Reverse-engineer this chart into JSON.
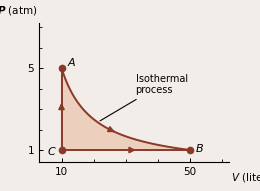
{
  "point_A": [
    10,
    5
  ],
  "point_B": [
    50,
    1
  ],
  "point_C": [
    10,
    1
  ],
  "PV_const": 50,
  "xlim": [
    3,
    62
  ],
  "ylim": [
    0.4,
    7.2
  ],
  "xticks": [
    10,
    50
  ],
  "yticks": [
    1,
    5
  ],
  "xlabel": "V (liters)",
  "ylabel": "P (atm)",
  "annotation_text": "Isothermal\nprocess",
  "curve_color": "#8B3A2A",
  "fill_color": "#E8B89A",
  "fill_alpha": 0.55,
  "arrow_color": "#8B3A2A",
  "bg_color": "#F2EDE8",
  "figsize": [
    2.6,
    1.91
  ],
  "dpi": 100
}
